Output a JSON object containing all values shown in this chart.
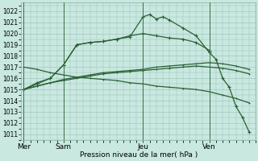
{
  "bg": "#c8e8e0",
  "grid_color": "#9bbfb5",
  "line_color": "#2a6035",
  "vline_color": "#3a7045",
  "xlabel": "Pression niveau de la mer( hPa )",
  "ylim": [
    1010.5,
    1022.8
  ],
  "yticks": [
    1011,
    1012,
    1013,
    1014,
    1015,
    1016,
    1017,
    1018,
    1019,
    1020,
    1021,
    1022
  ],
  "day_labels": [
    "Mer",
    "Sam",
    "Jeu",
    "Ven"
  ],
  "day_positions": [
    0,
    3,
    9,
    14
  ],
  "xlim": [
    -0.2,
    17.5
  ],
  "figsize": [
    3.2,
    2.0
  ],
  "dpi": 100,
  "line1_x": [
    0,
    1,
    2,
    3,
    4,
    5,
    6,
    7,
    8,
    9,
    10,
    11,
    12,
    13,
    14
  ],
  "line1_y": [
    1015.0,
    1015.6,
    1016.0,
    1017.2,
    1019.0,
    1019.2,
    1019.3,
    1019.5,
    1019.8,
    1020.0,
    1019.8,
    1019.6,
    1019.5,
    1019.2,
    1018.5
  ],
  "line2_x": [
    0,
    1,
    2,
    3,
    4,
    5,
    6,
    7,
    8,
    9,
    9.5,
    10,
    10.5,
    11,
    12,
    13,
    14,
    14.5,
    15,
    15.5,
    16,
    16.5,
    17
  ],
  "line2_y": [
    1015.0,
    1015.5,
    1016.0,
    1017.2,
    1019.0,
    1019.2,
    1019.3,
    1019.5,
    1019.7,
    1021.5,
    1021.7,
    1021.3,
    1021.5,
    1021.2,
    1020.5,
    1019.8,
    1018.3,
    1017.7,
    1016.0,
    1015.2,
    1013.5,
    1012.5,
    1011.2
  ],
  "line3_x": [
    0,
    1,
    2,
    3,
    4,
    5,
    6,
    7,
    8,
    9,
    10,
    11,
    12,
    13,
    14,
    15,
    16,
    17
  ],
  "line3_y": [
    1015.0,
    1015.3,
    1015.6,
    1015.9,
    1016.1,
    1016.3,
    1016.5,
    1016.6,
    1016.7,
    1016.8,
    1017.0,
    1017.1,
    1017.2,
    1017.3,
    1017.4,
    1017.3,
    1017.1,
    1016.8
  ],
  "line4_x": [
    0,
    1,
    2,
    3,
    4,
    5,
    6,
    7,
    8,
    9,
    10,
    11,
    12,
    13,
    14,
    15,
    16,
    17
  ],
  "line4_y": [
    1015.0,
    1015.3,
    1015.6,
    1015.8,
    1016.0,
    1016.2,
    1016.4,
    1016.5,
    1016.6,
    1016.7,
    1016.8,
    1016.9,
    1017.0,
    1017.1,
    1017.0,
    1016.9,
    1016.7,
    1016.4
  ],
  "line5_x": [
    0,
    1,
    2,
    3,
    4,
    5,
    6,
    7,
    8,
    9,
    10,
    11,
    12,
    13,
    14,
    15,
    16,
    17
  ],
  "line5_y": [
    1017.0,
    1016.8,
    1016.5,
    1016.3,
    1016.1,
    1016.0,
    1015.9,
    1015.8,
    1015.6,
    1015.5,
    1015.3,
    1015.2,
    1015.1,
    1015.0,
    1014.8,
    1014.5,
    1014.2,
    1013.8
  ]
}
